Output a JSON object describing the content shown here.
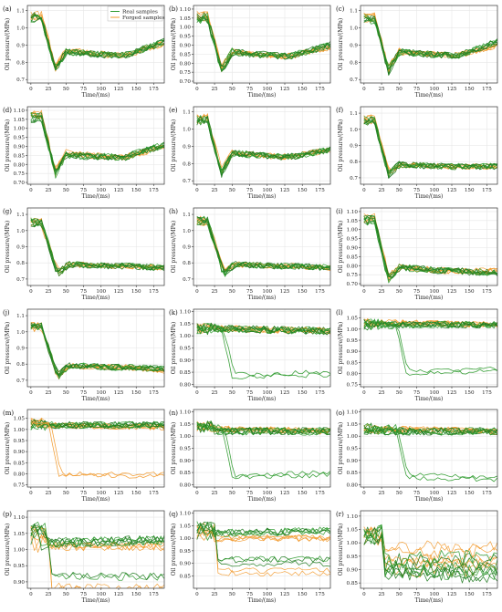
{
  "figure": {
    "legend": {
      "entries": [
        {
          "label": "Real samples",
          "color": "#2e9a2e"
        },
        {
          "label": "Forged samples",
          "color": "#f29a2e"
        }
      ],
      "placement": "top-right of panel (a)"
    },
    "colors": {
      "real": "#2e9a2e",
      "real_dark": "#1e7a1e",
      "forged": "#f29a2e",
      "grid": "#e6e6e6",
      "frame": "#333333"
    }
  },
  "chart_data": [
    {
      "id": "a",
      "label": "(a)",
      "type": "line",
      "xlabel": "Time/(ms)",
      "ylabel": "Oil pressure/(MPa)",
      "xlim": [
        -5,
        190
      ],
      "ylim": [
        0.68,
        1.13
      ],
      "xticks": [
        0,
        25,
        50,
        75,
        100,
        125,
        150,
        175
      ],
      "yticks": [
        0.7,
        0.8,
        0.9,
        1.0,
        1.1
      ],
      "yticklabels": [
        "0.7",
        "0.8",
        "0.9",
        "1.0",
        "1.1"
      ],
      "grid": true,
      "show_legend": true,
      "n_real": 8,
      "n_forged": 6,
      "real": {
        "pre": 1.06,
        "drop_end": 35,
        "min": 0.76,
        "settle": 0.86,
        "plateau": 0.84,
        "end": 0.92
      },
      "forged": {
        "pre": 1.07,
        "drop_end": 35,
        "min": 0.77,
        "settle": 0.87,
        "plateau": 0.84,
        "end": 0.91
      }
    },
    {
      "id": "b",
      "label": "(b)",
      "type": "line",
      "xlabel": "Time/(ms)",
      "ylabel": "Oil pressure/(MPa)",
      "xlim": [
        -5,
        190
      ],
      "ylim": [
        0.69,
        1.12
      ],
      "xticks": [
        0,
        25,
        50,
        75,
        100,
        125,
        150,
        175
      ],
      "yticks": [
        0.7,
        0.75,
        0.8,
        0.85,
        0.9,
        0.95,
        1.0,
        1.05,
        1.1
      ],
      "yticklabels": [
        "0.70",
        "0.75",
        "0.80",
        "0.85",
        "0.90",
        "0.95",
        "1.00",
        "1.05",
        "1.10"
      ],
      "grid": true,
      "n_real": 8,
      "n_forged": 6,
      "real": {
        "pre": 1.05,
        "drop_end": 35,
        "min": 0.76,
        "settle": 0.86,
        "plateau": 0.84,
        "end": 0.9
      },
      "forged": {
        "pre": 1.06,
        "drop_end": 35,
        "min": 0.77,
        "settle": 0.86,
        "plateau": 0.84,
        "end": 0.89
      }
    },
    {
      "id": "c",
      "label": "(c)",
      "type": "line",
      "xlabel": "Time/(ms)",
      "ylabel": "Oil pressure/(MPa)",
      "xlim": [
        -5,
        190
      ],
      "ylim": [
        0.68,
        1.13
      ],
      "xticks": [
        0,
        25,
        50,
        75,
        100,
        125,
        150,
        175
      ],
      "yticks": [
        0.7,
        0.8,
        0.9,
        1.0,
        1.1
      ],
      "yticklabels": [
        "0.7",
        "0.8",
        "0.9",
        "1.0",
        "1.1"
      ],
      "grid": true,
      "n_real": 8,
      "n_forged": 6,
      "real": {
        "pre": 1.05,
        "drop_end": 35,
        "min": 0.75,
        "settle": 0.86,
        "plateau": 0.84,
        "end": 0.92
      },
      "forged": {
        "pre": 1.06,
        "drop_end": 35,
        "min": 0.77,
        "settle": 0.86,
        "plateau": 0.84,
        "end": 0.9
      }
    },
    {
      "id": "d",
      "label": "(d)",
      "type": "line",
      "xlabel": "Time/(ms)",
      "ylabel": "Oil pressure/(MPa)",
      "xlim": [
        -5,
        190
      ],
      "ylim": [
        0.69,
        1.12
      ],
      "xticks": [
        0,
        25,
        50,
        75,
        100,
        125,
        150,
        175
      ],
      "yticks": [
        0.7,
        0.75,
        0.8,
        0.85,
        0.9,
        0.95,
        1.0,
        1.05,
        1.1
      ],
      "yticklabels": [
        "0.70",
        "0.75",
        "0.80",
        "0.85",
        "0.90",
        "0.95",
        "1.00",
        "1.05",
        "1.10"
      ],
      "grid": true,
      "n_real": 8,
      "n_forged": 6,
      "real": {
        "pre": 1.06,
        "drop_end": 35,
        "min": 0.75,
        "settle": 0.85,
        "plateau": 0.84,
        "end": 0.91
      },
      "forged": {
        "pre": 1.07,
        "drop_end": 35,
        "min": 0.76,
        "settle": 0.86,
        "plateau": 0.84,
        "end": 0.9
      }
    },
    {
      "id": "e",
      "label": "(e)",
      "type": "line",
      "xlabel": "Time/(ms)",
      "ylabel": "Oil pressure/(MPa)",
      "xlim": [
        -5,
        190
      ],
      "ylim": [
        0.68,
        1.13
      ],
      "xticks": [
        0,
        25,
        50,
        75,
        100,
        125,
        150,
        175
      ],
      "yticks": [
        0.7,
        0.8,
        0.9,
        1.0,
        1.1
      ],
      "yticklabels": [
        "0.7",
        "0.8",
        "0.9",
        "1.0",
        "1.1"
      ],
      "grid": true,
      "n_real": 8,
      "n_forged": 6,
      "real": {
        "pre": 1.05,
        "drop_end": 35,
        "min": 0.74,
        "settle": 0.86,
        "plateau": 0.84,
        "end": 0.88
      },
      "forged": {
        "pre": 1.06,
        "drop_end": 35,
        "min": 0.76,
        "settle": 0.86,
        "plateau": 0.84,
        "end": 0.88
      }
    },
    {
      "id": "f",
      "label": "(f)",
      "type": "line",
      "xlabel": "Time/(ms)",
      "ylabel": "Oil pressure/(MPa)",
      "xlim": [
        -5,
        190
      ],
      "ylim": [
        0.66,
        1.14
      ],
      "xticks": [
        0,
        25,
        50,
        75,
        100,
        125,
        150,
        175
      ],
      "yticks": [
        0.7,
        0.8,
        0.9,
        1.0,
        1.1
      ],
      "yticklabels": [
        "0.7",
        "0.8",
        "0.9",
        "1.0",
        "1.1"
      ],
      "grid": true,
      "n_real": 8,
      "n_forged": 6,
      "real": {
        "pre": 1.05,
        "drop_end": 35,
        "min": 0.72,
        "settle": 0.78,
        "plateau": 0.77,
        "end": 0.77
      },
      "forged": {
        "pre": 1.06,
        "drop_end": 35,
        "min": 0.74,
        "settle": 0.78,
        "plateau": 0.77,
        "end": 0.77
      }
    },
    {
      "id": "g",
      "label": "(g)",
      "type": "line",
      "xlabel": "Time/(ms)",
      "ylabel": "Oil pressure/(MPa)",
      "xlim": [
        -5,
        190
      ],
      "ylim": [
        0.66,
        1.14
      ],
      "xticks": [
        0,
        25,
        50,
        75,
        100,
        125,
        150,
        175
      ],
      "yticks": [
        0.7,
        0.8,
        0.9,
        1.0,
        1.1
      ],
      "yticklabels": [
        "0.7",
        "0.8",
        "0.9",
        "1.0",
        "1.1"
      ],
      "grid": true,
      "n_real": 8,
      "n_forged": 6,
      "real": {
        "pre": 1.05,
        "drop_end": 38,
        "min": 0.73,
        "settle": 0.79,
        "plateau": 0.78,
        "end": 0.77
      },
      "forged": {
        "pre": 1.05,
        "drop_end": 38,
        "min": 0.74,
        "settle": 0.79,
        "plateau": 0.78,
        "end": 0.77
      }
    },
    {
      "id": "h",
      "label": "(h)",
      "type": "line",
      "xlabel": "Time/(ms)",
      "ylabel": "Oil pressure/(MPa)",
      "xlim": [
        -5,
        190
      ],
      "ylim": [
        0.66,
        1.14
      ],
      "xticks": [
        0,
        25,
        50,
        75,
        100,
        125,
        150,
        175
      ],
      "yticks": [
        0.7,
        0.8,
        0.9,
        1.0,
        1.1
      ],
      "yticklabels": [
        "0.7",
        "0.8",
        "0.9",
        "1.0",
        "1.1"
      ],
      "grid": true,
      "n_real": 8,
      "n_forged": 6,
      "real": {
        "pre": 1.06,
        "drop_end": 38,
        "min": 0.73,
        "settle": 0.79,
        "plateau": 0.78,
        "end": 0.77
      },
      "forged": {
        "pre": 1.06,
        "drop_end": 38,
        "min": 0.75,
        "settle": 0.79,
        "plateau": 0.78,
        "end": 0.77
      }
    },
    {
      "id": "i",
      "label": "(i)",
      "type": "line",
      "xlabel": "Time/(ms)",
      "ylabel": "Oil pressure/(MPa)",
      "xlim": [
        -5,
        190
      ],
      "ylim": [
        0.69,
        1.12
      ],
      "xticks": [
        0,
        25,
        50,
        75,
        100,
        125,
        150,
        175
      ],
      "yticks": [
        0.7,
        0.75,
        0.8,
        0.85,
        0.9,
        0.95,
        1.0,
        1.05,
        1.1
      ],
      "yticklabels": [
        "0.70",
        "0.75",
        "0.80",
        "0.85",
        "0.90",
        "0.95",
        "1.00",
        "1.05",
        "1.10"
      ],
      "grid": true,
      "n_real": 8,
      "n_forged": 6,
      "real": {
        "pre": 1.05,
        "drop_end": 35,
        "min": 0.72,
        "settle": 0.79,
        "plateau": 0.77,
        "end": 0.76
      },
      "forged": {
        "pre": 1.06,
        "drop_end": 35,
        "min": 0.74,
        "settle": 0.79,
        "plateau": 0.77,
        "end": 0.77
      }
    },
    {
      "id": "j",
      "label": "(j)",
      "type": "line",
      "xlabel": "Time/(ms)",
      "ylabel": "Oil pressure/(MPa)",
      "xlim": [
        -5,
        190
      ],
      "ylim": [
        0.66,
        1.14
      ],
      "xticks": [
        0,
        25,
        50,
        75,
        100,
        125,
        150,
        175
      ],
      "yticks": [
        0.7,
        0.8,
        0.9,
        1.0,
        1.1
      ],
      "yticklabels": [
        "0.7",
        "0.8",
        "0.9",
        "1.0",
        "1.1"
      ],
      "grid": true,
      "n_real": 8,
      "n_forged": 6,
      "real": {
        "pre": 1.04,
        "drop_end": 38,
        "min": 0.72,
        "settle": 0.79,
        "plateau": 0.78,
        "end": 0.77
      },
      "forged": {
        "pre": 1.03,
        "drop_end": 38,
        "min": 0.72,
        "settle": 0.79,
        "plateau": 0.78,
        "end": 0.76
      }
    },
    {
      "id": "k",
      "label": "(k)",
      "type": "line",
      "xlabel": "Time/(ms)",
      "ylabel": "Oil pressure/(MPa)",
      "xlim": [
        -5,
        190
      ],
      "ylim": [
        0.79,
        1.11
      ],
      "xticks": [
        0,
        25,
        50,
        75,
        100,
        125,
        150,
        175
      ],
      "yticks": [
        0.8,
        0.85,
        0.9,
        0.95,
        1.0,
        1.05,
        1.1
      ],
      "yticklabels": [
        "0.80",
        "0.85",
        "0.90",
        "0.95",
        "1.00",
        "1.05",
        "1.10"
      ],
      "grid": true,
      "n_real": 8,
      "n_forged": 6,
      "real": {
        "pre": 1.03,
        "plateau": 1.03,
        "end": 1.02
      },
      "forged": {
        "pre": 1.03,
        "plateau": 1.03,
        "end": 1.02
      },
      "outlier": {
        "color": "real",
        "start": 35,
        "low": 0.83,
        "end": 0.84
      }
    },
    {
      "id": "l",
      "label": "(l)",
      "type": "line",
      "xlabel": "Time/(ms)",
      "ylabel": "Oil pressure/(MPa)",
      "xlim": [
        -5,
        190
      ],
      "ylim": [
        0.74,
        1.09
      ],
      "xticks": [
        0,
        25,
        50,
        75,
        100,
        125,
        150,
        175
      ],
      "yticks": [
        0.75,
        0.8,
        0.85,
        0.9,
        0.95,
        1.0,
        1.05
      ],
      "yticklabels": [
        "0.75",
        "0.80",
        "0.85",
        "0.90",
        "0.95",
        "1.00",
        "1.05"
      ],
      "grid": true,
      "n_real": 8,
      "n_forged": 6,
      "real": {
        "pre": 1.02,
        "plateau": 1.02,
        "end": 1.02
      },
      "forged": {
        "pre": 1.03,
        "plateau": 1.03,
        "end": 1.02
      },
      "outlier": {
        "color": "real",
        "start": 45,
        "low": 0.8,
        "end": 0.81
      }
    },
    {
      "id": "m",
      "label": "(m)",
      "type": "line",
      "xlabel": "Time/(ms)",
      "ylabel": "Oil pressure/(MPa)",
      "xlim": [
        -5,
        190
      ],
      "ylim": [
        0.74,
        1.09
      ],
      "xticks": [
        0,
        25,
        50,
        75,
        100,
        125,
        150,
        175
      ],
      "yticks": [
        0.75,
        0.8,
        0.85,
        0.9,
        0.95,
        1.0,
        1.05
      ],
      "yticklabels": [
        "0.75",
        "0.80",
        "0.85",
        "0.90",
        "0.95",
        "1.00",
        "1.05"
      ],
      "grid": true,
      "n_real": 8,
      "n_forged": 6,
      "real": {
        "pre": 1.02,
        "plateau": 1.02,
        "end": 1.02
      },
      "forged": {
        "pre": 1.03,
        "plateau": 1.02,
        "end": 1.01
      },
      "outlier": {
        "color": "forged",
        "start": 25,
        "low": 0.79,
        "end": 0.79
      }
    },
    {
      "id": "n",
      "label": "(n)",
      "type": "line",
      "xlabel": "Time/(ms)",
      "ylabel": "Oil pressure/(MPa)",
      "xlim": [
        -5,
        190
      ],
      "ylim": [
        0.79,
        1.11
      ],
      "xticks": [
        0,
        25,
        50,
        75,
        100,
        125,
        150,
        175
      ],
      "yticks": [
        0.8,
        0.85,
        0.9,
        0.95,
        1.0,
        1.05,
        1.1
      ],
      "yticklabels": [
        "0.80",
        "0.85",
        "0.90",
        "0.95",
        "1.00",
        "1.05",
        "1.10"
      ],
      "grid": true,
      "n_real": 8,
      "n_forged": 6,
      "real": {
        "pre": 1.04,
        "plateau": 1.02,
        "end": 1.02
      },
      "forged": {
        "pre": 1.04,
        "plateau": 1.03,
        "end": 1.02
      },
      "outlier": {
        "color": "real",
        "start": 35,
        "low": 0.83,
        "end": 0.84
      }
    },
    {
      "id": "o",
      "label": "(o)",
      "type": "line",
      "xlabel": "Time/(ms)",
      "ylabel": "Oil pressure/(MPa)",
      "xlim": [
        -5,
        190
      ],
      "ylim": [
        0.79,
        1.11
      ],
      "xticks": [
        0,
        25,
        50,
        75,
        100,
        125,
        150,
        175
      ],
      "yticks": [
        0.8,
        0.85,
        0.9,
        0.95,
        1.0,
        1.05,
        1.1
      ],
      "yticklabels": [
        "0.80",
        "0.85",
        "0.90",
        "0.95",
        "1.00",
        "1.05",
        "1.10"
      ],
      "grid": true,
      "n_real": 8,
      "n_forged": 6,
      "real": {
        "pre": 1.03,
        "plateau": 1.02,
        "end": 1.02
      },
      "forged": {
        "pre": 1.03,
        "plateau": 1.03,
        "end": 1.02
      },
      "outlier": {
        "color": "real",
        "start": 45,
        "low": 0.83,
        "end": 0.82
      }
    },
    {
      "id": "p",
      "label": "(p)",
      "type": "line",
      "xlabel": "Time/(ms)",
      "ylabel": "Oil pressure/(MPa)",
      "xlim": [
        -5,
        190
      ],
      "ylim": [
        0.88,
        1.12
      ],
      "xticks": [
        0,
        25,
        50,
        75,
        100,
        125,
        150,
        175
      ],
      "yticks": [
        0.9,
        0.95,
        1.0,
        1.05,
        1.1
      ],
      "yticklabels": [
        "0.90",
        "0.95",
        "1.00",
        "1.05",
        "1.10"
      ],
      "grid": true,
      "n_real": 8,
      "n_forged": 6,
      "real": {
        "pre": 1.06,
        "plateau": 1.02,
        "end": 1.03
      },
      "forged": {
        "pre": 1.05,
        "plateau": 1.01,
        "end": 1.01
      },
      "lower_band": {
        "level": 0.925,
        "count": 3
      }
    },
    {
      "id": "q",
      "label": "(q)",
      "type": "line",
      "xlabel": "Time/(ms)",
      "ylabel": "Oil pressure/(MPa)",
      "xlim": [
        -5,
        190
      ],
      "ylim": [
        0.8,
        1.11
      ],
      "xticks": [
        0,
        25,
        50,
        75,
        100,
        125,
        150,
        175
      ],
      "yticks": [
        0.85,
        0.9,
        0.95,
        1.0,
        1.05,
        1.1
      ],
      "yticklabels": [
        "0.85",
        "0.90",
        "0.95",
        "1.00",
        "1.05",
        "1.10"
      ],
      "grid": true,
      "n_real": 8,
      "n_forged": 6,
      "real": {
        "pre": 1.04,
        "plateau": 1.02,
        "end": 1.03
      },
      "forged": {
        "pre": 1.03,
        "plateau": 1.0,
        "end": 1.0
      },
      "lower_band": {
        "level": 0.91,
        "count": 4
      }
    },
    {
      "id": "r",
      "label": "(r)",
      "type": "line",
      "xlabel": "Time/(ms)",
      "ylabel": "Oil pressure/(MPa)",
      "xlim": [
        -5,
        190
      ],
      "ylim": [
        0.83,
        1.12
      ],
      "xticks": [
        0,
        25,
        50,
        75,
        100,
        125,
        150,
        175
      ],
      "yticks": [
        0.85,
        0.9,
        0.95,
        1.0,
        1.05,
        1.1
      ],
      "yticklabels": [
        "0.85",
        "0.90",
        "0.95",
        "1.00",
        "1.05",
        "1.10"
      ],
      "grid": true,
      "n_real": 8,
      "n_forged": 6,
      "real": {
        "pre": 1.05,
        "plateau": 0.93,
        "end": 0.92
      },
      "forged": {
        "pre": 1.04,
        "plateau": 0.94,
        "end": 0.93
      },
      "spread": true
    }
  ]
}
